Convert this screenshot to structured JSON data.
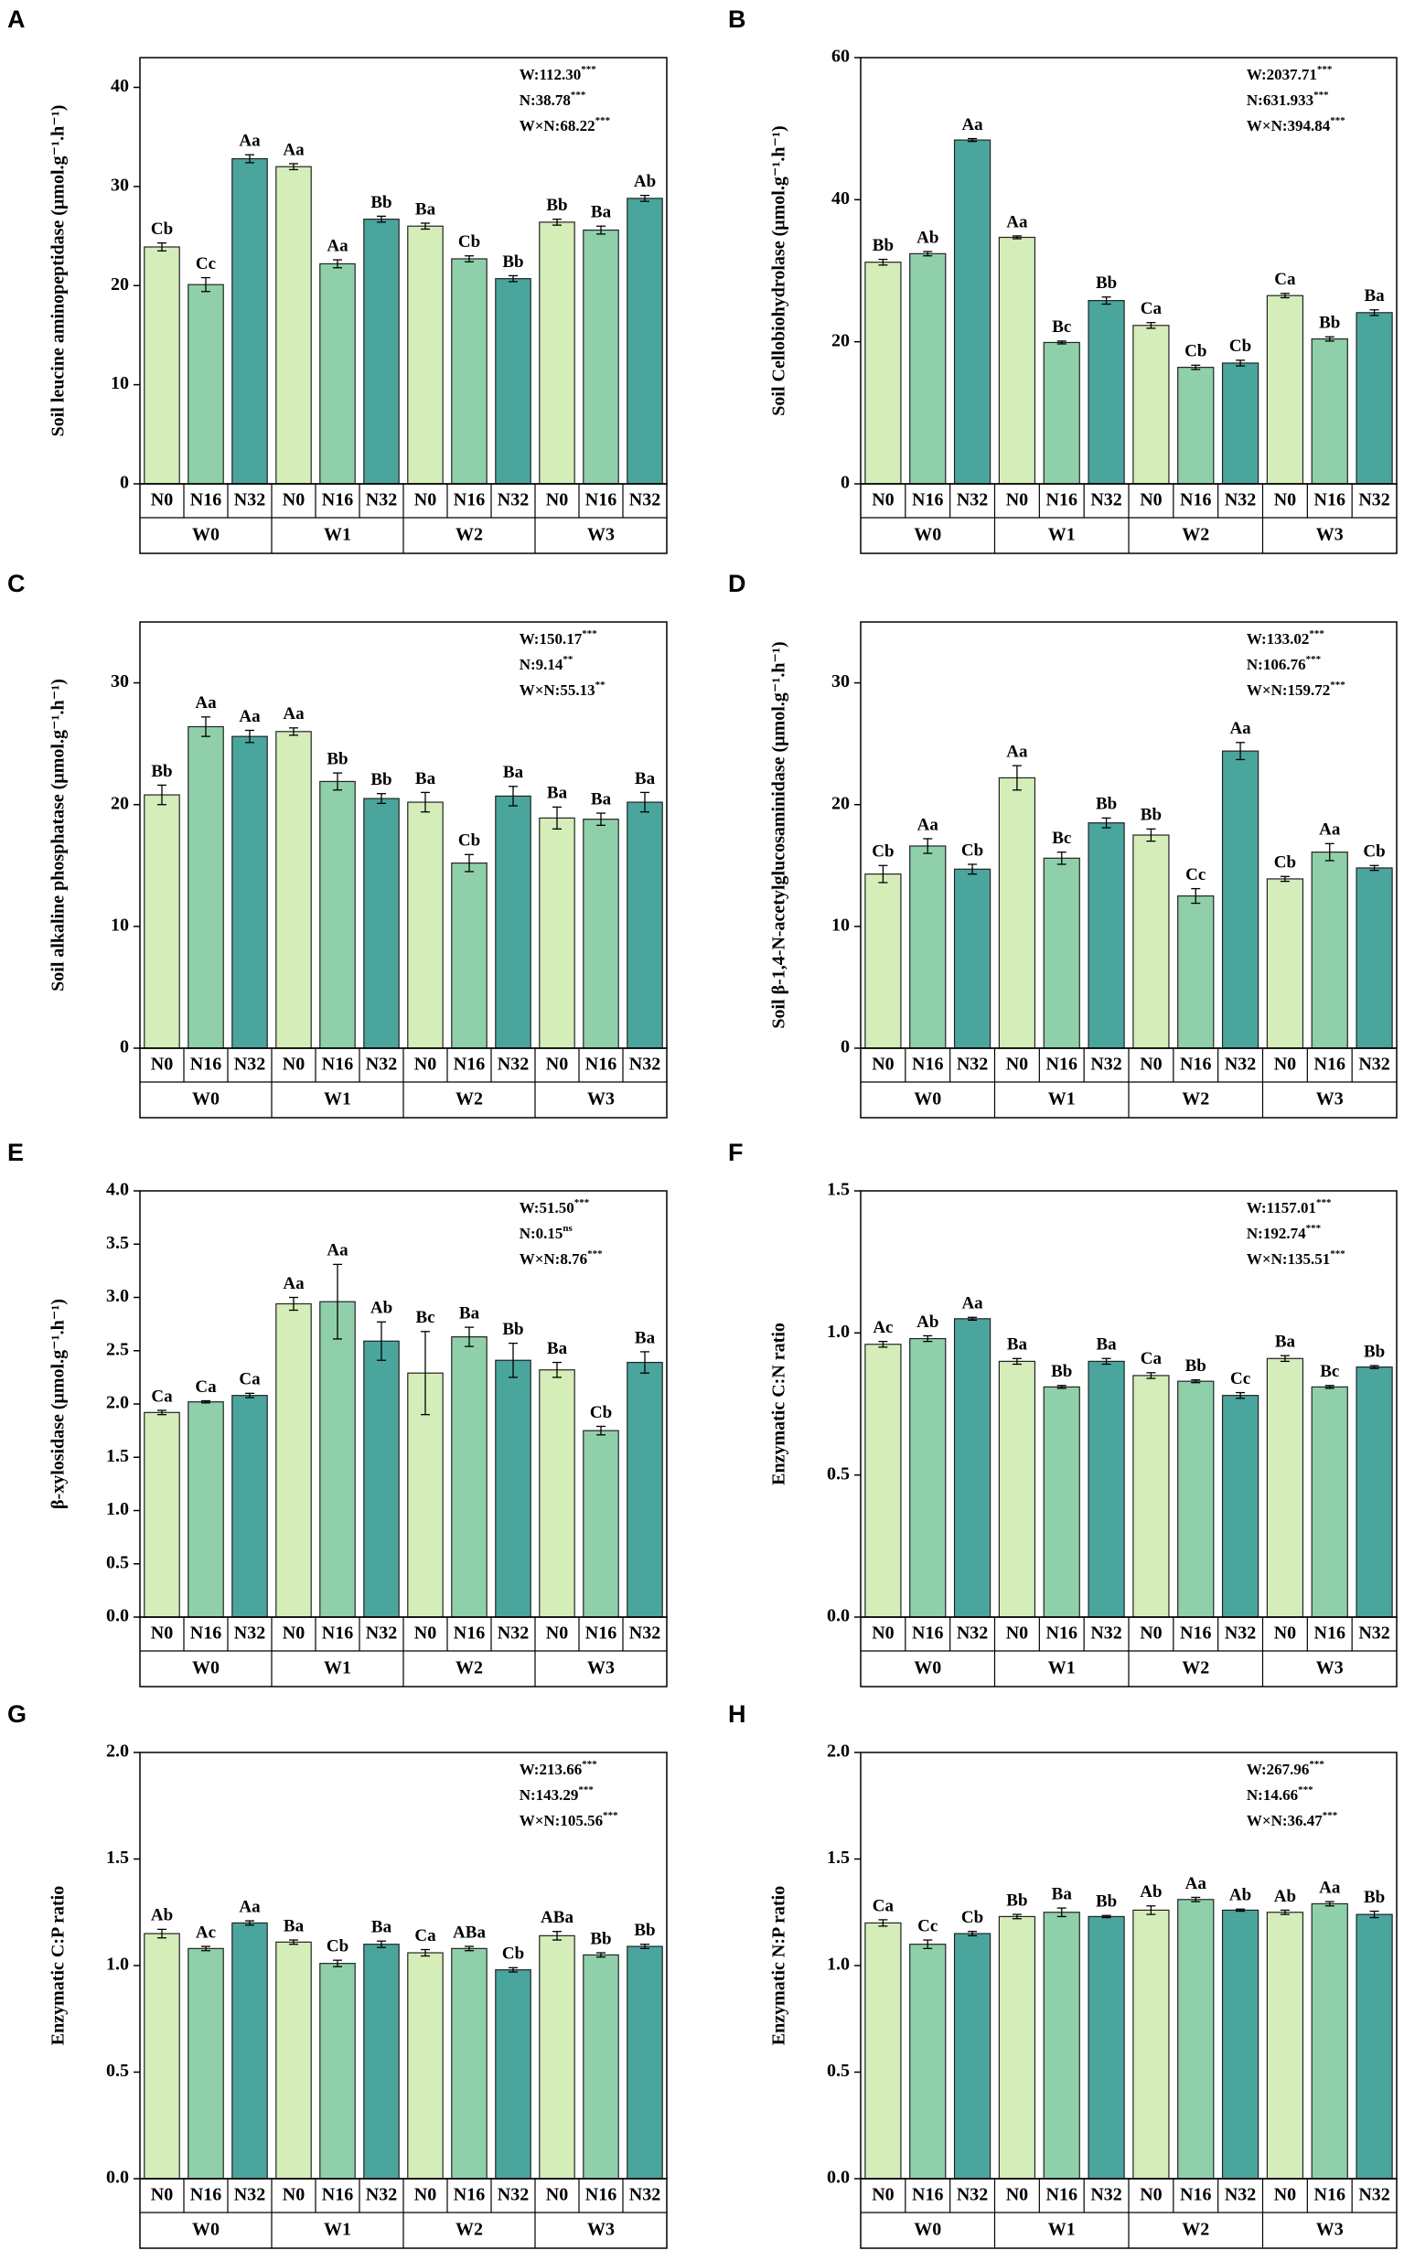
{
  "chart_data": [
    {
      "type": "bar",
      "panel": "A",
      "ylabel": "Soil leucine aminopeptidase (μmol.g⁻¹.h⁻¹)",
      "categories": [
        "N0",
        "N16",
        "N32",
        "N0",
        "N16",
        "N32",
        "N0",
        "N16",
        "N32",
        "N0",
        "N16",
        "N32"
      ],
      "groups": [
        "W0",
        "W1",
        "W2",
        "W3"
      ],
      "values": [
        23.9,
        20.1,
        32.8,
        32.0,
        22.2,
        26.7,
        26.0,
        22.7,
        20.7,
        26.4,
        25.6,
        28.8
      ],
      "errors": [
        0.4,
        0.7,
        0.4,
        0.3,
        0.4,
        0.3,
        0.3,
        0.3,
        0.3,
        0.3,
        0.4,
        0.3
      ],
      "annotations": [
        "Cb",
        "Cc",
        "Aa",
        "Aa",
        "Aa",
        "Bb",
        "Ba",
        "Cb",
        "Bb",
        "Bb",
        "Ba",
        "Ab"
      ],
      "stats": [
        {
          "text": "W:112.30",
          "sig": "***"
        },
        {
          "text": "N:38.78",
          "sig": "***"
        },
        {
          "text": "W×N:68.22",
          "sig": "***"
        }
      ],
      "colors": [
        "#d5edb9",
        "#8fd0aa",
        "#4aa59d"
      ],
      "ylim": [
        0,
        43
      ],
      "yticks": [
        0,
        10,
        20,
        30,
        40
      ]
    },
    {
      "type": "bar",
      "panel": "B",
      "ylabel": "Soil Cellobiohydrolase (μmol.g⁻¹.h⁻¹)",
      "categories": [
        "N0",
        "N16",
        "N32",
        "N0",
        "N16",
        "N32",
        "N0",
        "N16",
        "N32",
        "N0",
        "N16",
        "N32"
      ],
      "groups": [
        "W0",
        "W1",
        "W2",
        "W3"
      ],
      "values": [
        31.2,
        32.4,
        48.4,
        34.7,
        19.9,
        25.8,
        22.3,
        16.4,
        17.0,
        26.5,
        20.4,
        24.1
      ],
      "errors": [
        0.4,
        0.3,
        0.2,
        0.2,
        0.2,
        0.5,
        0.4,
        0.3,
        0.4,
        0.3,
        0.3,
        0.4
      ],
      "annotations": [
        "Bb",
        "Ab",
        "Aa",
        "Aa",
        "Bc",
        "Bb",
        "Ca",
        "Cb",
        "Cb",
        "Ca",
        "Bb",
        "Ba"
      ],
      "stats": [
        {
          "text": "W:2037.71",
          "sig": "***"
        },
        {
          "text": "N:631.933",
          "sig": "***"
        },
        {
          "text": "W×N:394.84",
          "sig": "***"
        }
      ],
      "colors": [
        "#d5edb9",
        "#8fd0aa",
        "#4aa59d"
      ],
      "ylim": [
        0,
        60
      ],
      "yticks": [
        0,
        20,
        40,
        60
      ]
    },
    {
      "type": "bar",
      "panel": "C",
      "ylabel": "Soil alkaline phosphatase (μmol.g⁻¹.h⁻¹)",
      "categories": [
        "N0",
        "N16",
        "N32",
        "N0",
        "N16",
        "N32",
        "N0",
        "N16",
        "N32",
        "N0",
        "N16",
        "N32"
      ],
      "groups": [
        "W0",
        "W1",
        "W2",
        "W3"
      ],
      "values": [
        20.8,
        26.4,
        25.6,
        26.0,
        21.9,
        20.5,
        20.2,
        15.2,
        20.7,
        18.9,
        18.8,
        20.2
      ],
      "errors": [
        0.8,
        0.8,
        0.5,
        0.3,
        0.7,
        0.4,
        0.8,
        0.7,
        0.8,
        0.9,
        0.5,
        0.8
      ],
      "annotations": [
        "Bb",
        "Aa",
        "Aa",
        "Aa",
        "Bb",
        "Bb",
        "Ba",
        "Cb",
        "Ba",
        "Ba",
        "Ba",
        "Ba"
      ],
      "stats": [
        {
          "text": "W:150.17",
          "sig": "***"
        },
        {
          "text": "N:9.14",
          "sig": "**"
        },
        {
          "text": "W×N:55.13",
          "sig": "**"
        }
      ],
      "colors": [
        "#d5edb9",
        "#8fd0aa",
        "#4aa59d"
      ],
      "ylim": [
        0,
        35
      ],
      "yticks": [
        0,
        10,
        20,
        30
      ]
    },
    {
      "type": "bar",
      "panel": "D",
      "ylabel": "Soil β-1,4-N-acetylglucosaminidase (μmol.g⁻¹.h⁻¹)",
      "categories": [
        "N0",
        "N16",
        "N32",
        "N0",
        "N16",
        "N32",
        "N0",
        "N16",
        "N32",
        "N0",
        "N16",
        "N32"
      ],
      "groups": [
        "W0",
        "W1",
        "W2",
        "W3"
      ],
      "values": [
        14.3,
        16.6,
        14.7,
        22.2,
        15.6,
        18.5,
        17.5,
        12.5,
        24.4,
        13.9,
        16.1,
        14.8
      ],
      "errors": [
        0.7,
        0.6,
        0.4,
        1.0,
        0.5,
        0.4,
        0.5,
        0.6,
        0.7,
        0.2,
        0.7,
        0.2
      ],
      "annotations": [
        "Cb",
        "Aa",
        "Cb",
        "Aa",
        "Bc",
        "Bb",
        "Bb",
        "Cc",
        "Aa",
        "Cb",
        "Aa",
        "Cb"
      ],
      "stats": [
        {
          "text": "W:133.02",
          "sig": "***"
        },
        {
          "text": "N:106.76",
          "sig": "***"
        },
        {
          "text": "W×N:159.72",
          "sig": "***"
        }
      ],
      "colors": [
        "#d5edb9",
        "#8fd0aa",
        "#4aa59d"
      ],
      "ylim": [
        0,
        35
      ],
      "yticks": [
        0,
        10,
        20,
        30
      ]
    },
    {
      "type": "bar",
      "panel": "E",
      "ylabel": "β-xylosidase (μmol.g⁻¹.h⁻¹)",
      "categories": [
        "N0",
        "N16",
        "N32",
        "N0",
        "N16",
        "N32",
        "N0",
        "N16",
        "N32",
        "N0",
        "N16",
        "N32"
      ],
      "groups": [
        "W0",
        "W1",
        "W2",
        "W3"
      ],
      "values": [
        1.92,
        2.02,
        2.08,
        2.94,
        2.96,
        2.59,
        2.29,
        2.63,
        2.41,
        2.32,
        1.75,
        2.39
      ],
      "errors": [
        0.02,
        0.01,
        0.02,
        0.06,
        0.35,
        0.18,
        0.39,
        0.09,
        0.16,
        0.07,
        0.04,
        0.1
      ],
      "annotations": [
        "Ca",
        "Ca",
        "Ca",
        "Aa",
        "Aa",
        "Ab",
        "Bc",
        "Ba",
        "Bb",
        "Ba",
        "Cb",
        "Ba"
      ],
      "stats": [
        {
          "text": "W:51.50",
          "sig": "***"
        },
        {
          "text": "N:0.15",
          "sig": "ns"
        },
        {
          "text": "W×N:8.76",
          "sig": "***"
        }
      ],
      "colors": [
        "#d5edb9",
        "#8fd0aa",
        "#4aa59d"
      ],
      "ylim": [
        0,
        4
      ],
      "yticks": [
        {
          "value": 0,
          "label": "0.0"
        },
        0.5,
        {
          "value": 1,
          "label": "1.0"
        },
        1.5,
        {
          "value": 2,
          "label": "2.0"
        },
        2.5,
        {
          "value": 3,
          "label": "3.0"
        },
        3.5,
        {
          "value": 4,
          "label": "4.0"
        }
      ]
    },
    {
      "type": "bar",
      "panel": "F",
      "ylabel": "Enzymatic C:N ratio",
      "categories": [
        "N0",
        "N16",
        "N32",
        "N0",
        "N16",
        "N32",
        "N0",
        "N16",
        "N32",
        "N0",
        "N16",
        "N32"
      ],
      "groups": [
        "W0",
        "W1",
        "W2",
        "W3"
      ],
      "values": [
        0.96,
        0.98,
        1.05,
        0.9,
        0.81,
        0.9,
        0.85,
        0.83,
        0.78,
        0.91,
        0.81,
        0.88
      ],
      "errors": [
        0.01,
        0.01,
        0.005,
        0.01,
        0.005,
        0.01,
        0.01,
        0.005,
        0.01,
        0.01,
        0.005,
        0.005
      ],
      "annotations": [
        "Ac",
        "Ab",
        "Aa",
        "Ba",
        "Bb",
        "Ba",
        "Ca",
        "Bb",
        "Cc",
        "Ba",
        "Bc",
        "Bb"
      ],
      "stats": [
        {
          "text": "W:1157.01",
          "sig": "***"
        },
        {
          "text": "N:192.74",
          "sig": "***"
        },
        {
          "text": "W×N:135.51",
          "sig": "***"
        }
      ],
      "colors": [
        "#d5edb9",
        "#8fd0aa",
        "#4aa59d"
      ],
      "ylim": [
        0,
        1.5
      ],
      "yticks": [
        {
          "value": 0,
          "label": "0.0"
        },
        0.5,
        {
          "value": 1,
          "label": "1.0"
        },
        1.5
      ]
    },
    {
      "type": "bar",
      "panel": "G",
      "ylabel": "Enzymatic C:P ratio",
      "categories": [
        "N0",
        "N16",
        "N32",
        "N0",
        "N16",
        "N32",
        "N0",
        "N16",
        "N32",
        "N0",
        "N16",
        "N32"
      ],
      "groups": [
        "W0",
        "W1",
        "W2",
        "W3"
      ],
      "values": [
        1.15,
        1.08,
        1.2,
        1.11,
        1.01,
        1.1,
        1.06,
        1.08,
        0.98,
        1.14,
        1.05,
        1.09
      ],
      "errors": [
        0.02,
        0.01,
        0.01,
        0.01,
        0.015,
        0.015,
        0.015,
        0.01,
        0.01,
        0.02,
        0.01,
        0.01
      ],
      "annotations": [
        "Ab",
        "Ac",
        "Aa",
        "Ba",
        "Cb",
        "Ba",
        "Ca",
        "ABa",
        "Cb",
        "ABa",
        "Bb",
        "Bb"
      ],
      "stats": [
        {
          "text": "W:213.66",
          "sig": "***"
        },
        {
          "text": "N:143.29",
          "sig": "***"
        },
        {
          "text": "W×N:105.56",
          "sig": "***"
        }
      ],
      "colors": [
        "#d5edb9",
        "#8fd0aa",
        "#4aa59d"
      ],
      "ylim": [
        0,
        2
      ],
      "yticks": [
        {
          "value": 0,
          "label": "0.0"
        },
        0.5,
        {
          "value": 1,
          "label": "1.0"
        },
        1.5,
        {
          "value": 2,
          "label": "2.0"
        }
      ]
    },
    {
      "type": "bar",
      "panel": "H",
      "ylabel": "Enzymatic N:P ratio",
      "categories": [
        "N0",
        "N16",
        "N32",
        "N0",
        "N16",
        "N32",
        "N0",
        "N16",
        "N32",
        "N0",
        "N16",
        "N32"
      ],
      "groups": [
        "W0",
        "W1",
        "W2",
        "W3"
      ],
      "values": [
        1.2,
        1.1,
        1.15,
        1.23,
        1.25,
        1.23,
        1.26,
        1.31,
        1.26,
        1.25,
        1.29,
        1.24
      ],
      "errors": [
        0.015,
        0.02,
        0.01,
        0.01,
        0.02,
        0.005,
        0.02,
        0.01,
        0.005,
        0.01,
        0.01,
        0.015
      ],
      "annotations": [
        "Ca",
        "Cc",
        "Cb",
        "Bb",
        "Ba",
        "Bb",
        "Ab",
        "Aa",
        "Ab",
        "Ab",
        "Aa",
        "Bb"
      ],
      "stats": [
        {
          "text": "W:267.96",
          "sig": "***"
        },
        {
          "text": "N:14.66",
          "sig": "***"
        },
        {
          "text": "W×N:36.47",
          "sig": "***"
        }
      ],
      "colors": [
        "#d5edb9",
        "#8fd0aa",
        "#4aa59d"
      ],
      "ylim": [
        0,
        2
      ],
      "yticks": [
        {
          "value": 0,
          "label": "0.0"
        },
        0.5,
        {
          "value": 1,
          "label": "1.0"
        },
        1.5,
        {
          "value": 2,
          "label": "2.0"
        }
      ]
    }
  ]
}
